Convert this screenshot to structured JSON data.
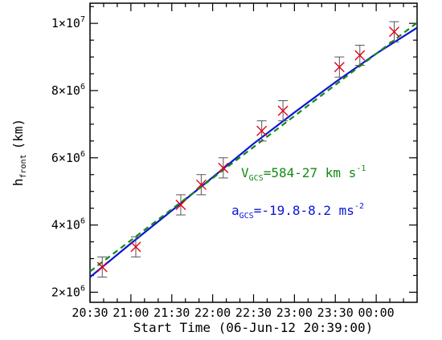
{
  "chart_data": {
    "type": "scatter",
    "xlabel": "Start Time (06-Jun-12 20:39:00)",
    "ylabel": {
      "main": "h",
      "subscript": "front",
      "unit": "(km)"
    },
    "x_ticks": [
      "20:30",
      "21:00",
      "21:30",
      "22:00",
      "22:30",
      "23:00",
      "23:30",
      "00:00"
    ],
    "x_tick_hours": [
      20.5,
      21.0,
      21.5,
      22.0,
      22.5,
      23.0,
      23.5,
      24.0
    ],
    "x_range_hours": [
      20.5,
      24.5
    ],
    "y_ticks": [
      {
        "value": 2000000,
        "mantissa": "2",
        "base": "×10",
        "exp": "6"
      },
      {
        "value": 4000000,
        "mantissa": "4",
        "base": "×10",
        "exp": "6"
      },
      {
        "value": 6000000,
        "mantissa": "6",
        "base": "×10",
        "exp": "6"
      },
      {
        "value": 8000000,
        "mantissa": "8",
        "base": "×10",
        "exp": "6"
      },
      {
        "value": 10000000,
        "mantissa": "1",
        "base": "×10",
        "exp": "7"
      }
    ],
    "y_range": [
      1700000,
      10600000
    ],
    "series": [
      {
        "marker": "x",
        "color": "#e3001b",
        "time_hours": [
          20.65,
          21.06,
          21.61,
          21.86,
          22.13,
          22.6,
          22.86,
          23.55,
          23.8,
          24.22
        ],
        "height_km": [
          2750000,
          3350000,
          4600000,
          5200000,
          5700000,
          6800000,
          7400000,
          8700000,
          9050000,
          9750000
        ],
        "error_km": [
          300000,
          300000,
          300000,
          300000,
          300000,
          300000,
          300000,
          300000,
          300000,
          300000
        ]
      }
    ],
    "fits": [
      {
        "style": "solid",
        "color": "#0a14d8",
        "time_hours": [
          20.5,
          21.0,
          21.5,
          22.0,
          22.5,
          23.0,
          23.5,
          24.0,
          24.5
        ],
        "height_km": [
          2450000,
          3450000,
          4430000,
          5420000,
          6420000,
          7350000,
          8250000,
          9100000,
          9870000
        ]
      },
      {
        "style": "dashed",
        "color": "#138a13",
        "time_hours": [
          20.5,
          24.5
        ],
        "height_km": [
          2620000,
          10020000
        ]
      }
    ],
    "annotations": {
      "velocity": {
        "main": "V",
        "subscript": "GCS",
        "value": "=584-27 km s",
        "unit_exp": "-1",
        "color": "#138a13"
      },
      "acceleration": {
        "main": "a",
        "subscript": "GCS",
        "value": "=-19.8-8.2 ms",
        "unit_exp": "-2",
        "color": "#0a14d8"
      }
    }
  }
}
